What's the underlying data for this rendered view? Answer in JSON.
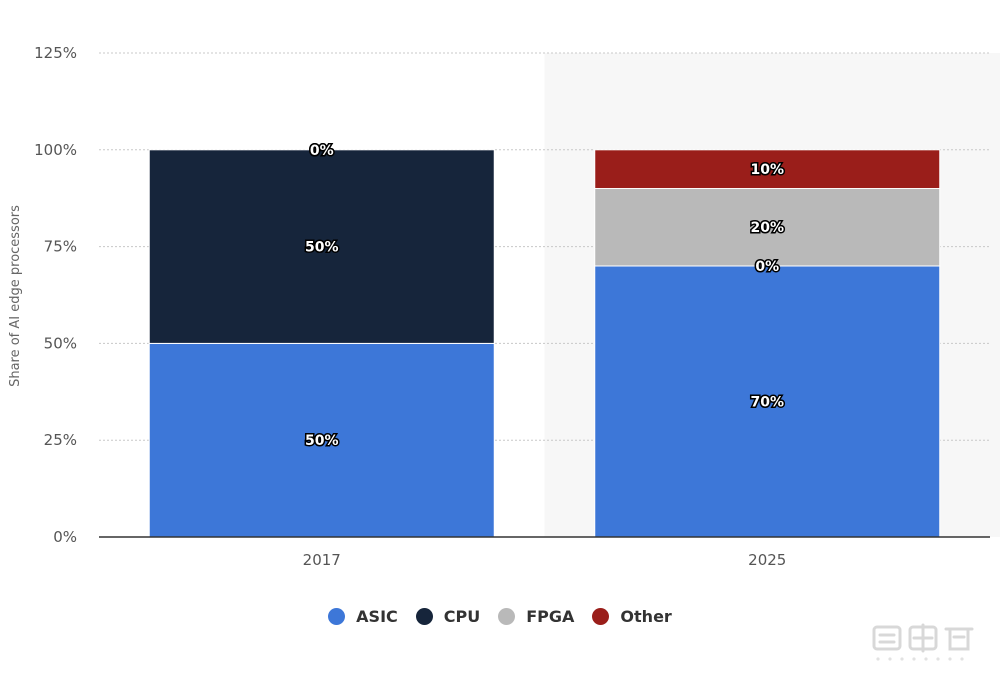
{
  "chart_data": {
    "type": "bar",
    "stacked": true,
    "categories": [
      "2017",
      "2025"
    ],
    "highlighted_category": "2025",
    "ylabel": "Share of AI edge processors",
    "ylim": [
      0,
      125
    ],
    "yticks": [
      0,
      25,
      50,
      75,
      100,
      125
    ],
    "ytick_labels": [
      "0%",
      "25%",
      "50%",
      "75%",
      "100%",
      "125%"
    ],
    "grid": true,
    "legend_position": "bottom",
    "series": [
      {
        "name": "ASIC",
        "color": "#3d77d8",
        "values": [
          50,
          70
        ],
        "labels": [
          "50%",
          "70%"
        ]
      },
      {
        "name": "CPU",
        "color": "#16253b",
        "values": [
          50,
          0
        ],
        "labels": [
          "50%",
          "0%"
        ]
      },
      {
        "name": "FPGA",
        "color": "#b9b9b9",
        "values": [
          0,
          20
        ],
        "labels": [
          "0%",
          "20%"
        ]
      },
      {
        "name": "Other",
        "color": "#9a1e1a",
        "values": [
          0,
          10
        ],
        "labels": [
          "0%",
          "10%"
        ]
      }
    ]
  }
}
